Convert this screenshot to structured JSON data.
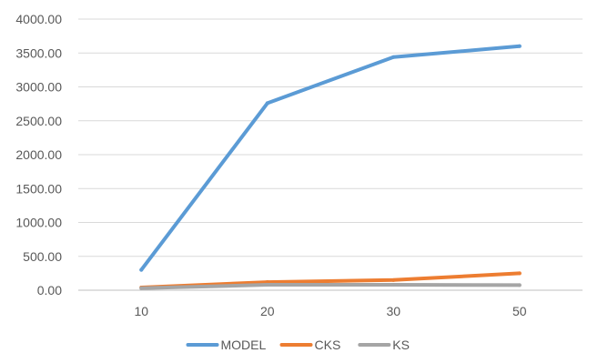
{
  "chart_data": {
    "type": "line",
    "title": "",
    "xlabel": "",
    "ylabel": "",
    "categories": [
      "10",
      "20",
      "30",
      "50"
    ],
    "ylim": [
      0,
      4000
    ],
    "yticks": [
      "0.00",
      "500.00",
      "1000.00",
      "1500.00",
      "2000.00",
      "2500.00",
      "3000.00",
      "3500.00",
      "4000.00"
    ],
    "grid": true,
    "legend_position": "bottom",
    "series": [
      {
        "name": "MODEL",
        "color": "#5b9bd5",
        "values": [
          300,
          2760,
          3440,
          3600
        ]
      },
      {
        "name": "CKS",
        "color": "#ed7d31",
        "values": [
          40,
          120,
          150,
          250
        ]
      },
      {
        "name": "KS",
        "color": "#a5a5a5",
        "values": [
          30,
          80,
          80,
          75
        ]
      }
    ]
  }
}
